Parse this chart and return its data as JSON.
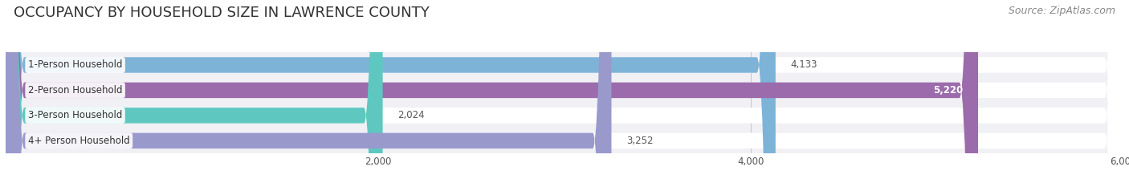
{
  "title": "OCCUPANCY BY HOUSEHOLD SIZE IN LAWRENCE COUNTY",
  "source": "Source: ZipAtlas.com",
  "categories": [
    "1-Person Household",
    "2-Person Household",
    "3-Person Household",
    "4+ Person Household"
  ],
  "values": [
    4133,
    5220,
    2024,
    3252
  ],
  "bar_colors": [
    "#7eb3d8",
    "#9b6bab",
    "#5ec8c0",
    "#9999cc"
  ],
  "xlim": [
    0,
    6000
  ],
  "xticks": [
    2000,
    4000,
    6000
  ],
  "xtick_labels": [
    "2,000",
    "4,000",
    "6,000"
  ],
  "value_labels": [
    "4,133",
    "5,220",
    "2,024",
    "3,252"
  ],
  "value_label_inside": [
    false,
    true,
    false,
    false
  ],
  "background_color": "#ffffff",
  "plot_bg_color": "#f0f0f5",
  "title_fontsize": 13,
  "source_fontsize": 9,
  "bar_height": 0.62,
  "bar_gap": 0.18
}
